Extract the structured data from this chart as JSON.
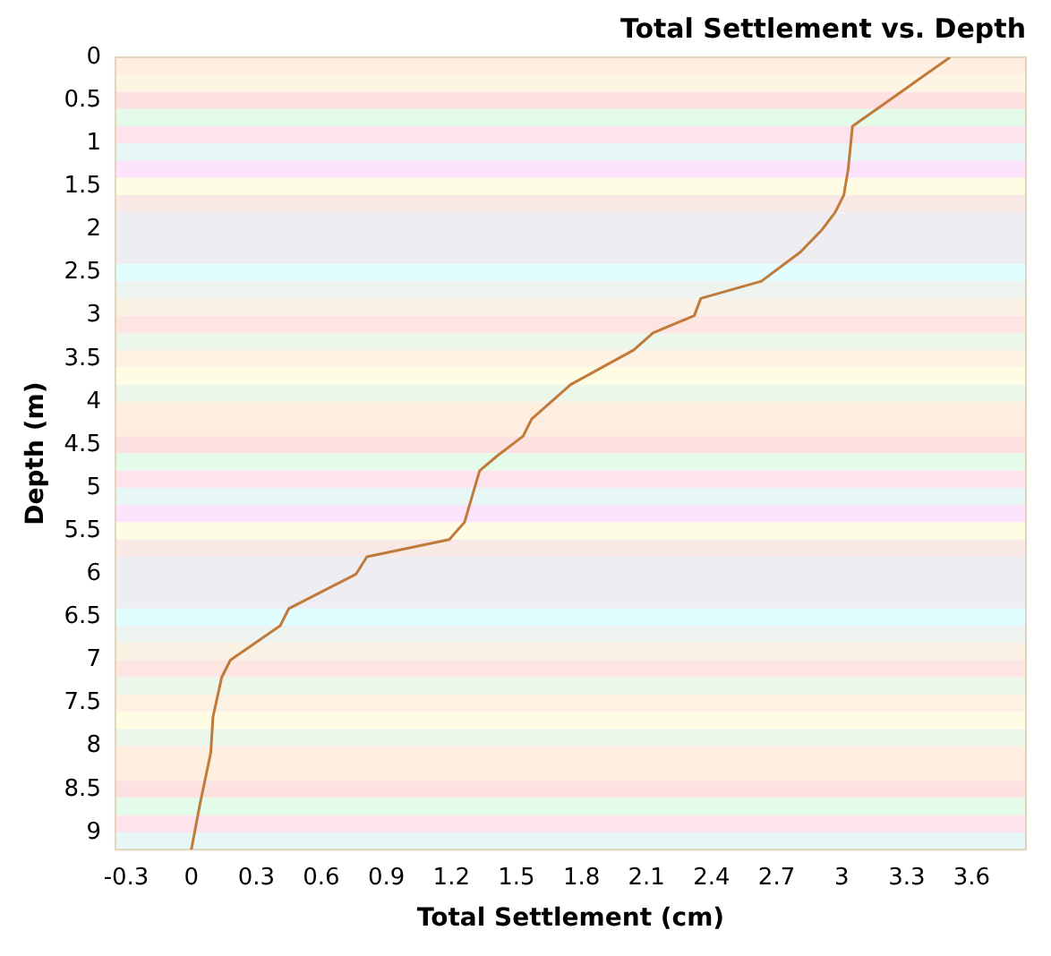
{
  "chart_data": {
    "type": "line",
    "title": "Total Settlement vs. Depth",
    "xlabel": "Total Settlement (cm)",
    "ylabel": "Depth (m)",
    "orientation": "horizontal",
    "series": [
      {
        "color": "#c07a3a",
        "values": [
          3.5,
          3.05,
          3.03,
          3.01,
          2.97,
          2.91,
          2.81,
          2.63,
          2.35,
          2.32,
          2.13,
          2.04,
          1.75,
          1.57,
          1.53,
          1.41,
          1.33,
          1.26,
          1.19,
          0.81,
          0.76,
          0.45,
          0.41,
          0.18,
          0.14,
          0.1,
          0.09,
          0.04,
          0
        ],
        "x": [
          0,
          0.8,
          1.3,
          1.6,
          1.8,
          2.0,
          2.26,
          2.6,
          2.8,
          3.0,
          3.2,
          3.4,
          3.8,
          4.2,
          4.4,
          4.63,
          4.8,
          5.4,
          5.6,
          5.8,
          6.0,
          6.4,
          6.6,
          7.0,
          7.2,
          7.66,
          8.07,
          8.67,
          9.2
        ]
      }
    ],
    "xlim": [
      -0.35,
      3.85
    ],
    "xticks": [
      -0.3,
      0,
      0.3,
      0.6,
      0.9,
      1.2,
      1.5,
      1.8,
      2.1,
      2.4,
      2.7,
      3,
      3.3,
      3.6
    ],
    "ylim": [
      9.2,
      0
    ],
    "yticks": [
      0,
      0.5,
      1,
      1.5,
      2,
      2.5,
      3,
      3.5,
      4,
      4.5,
      5,
      5.5,
      6,
      6.5,
      7,
      7.5,
      8,
      8.5,
      9
    ],
    "grid": false,
    "legend": false,
    "marker": "none",
    "line_style": "solid",
    "bands": [
      {
        "axis": "y",
        "from": 0,
        "to": 0.2,
        "color": "#fdeee0"
      },
      {
        "axis": "y",
        "from": 0.2,
        "to": 0.4,
        "color": "#fdf5e3"
      },
      {
        "axis": "y",
        "from": 0.4,
        "to": 0.6,
        "color": "#fde1e1"
      },
      {
        "axis": "y",
        "from": 0.6,
        "to": 0.8,
        "color": "#e4fbe9"
      },
      {
        "axis": "y",
        "from": 0.8,
        "to": 1.0,
        "color": "#fde3ec"
      },
      {
        "axis": "y",
        "from": 1.0,
        "to": 1.2,
        "color": "#e6f7f5"
      },
      {
        "axis": "y",
        "from": 1.2,
        "to": 1.4,
        "color": "#fde3fb"
      },
      {
        "axis": "y",
        "from": 1.4,
        "to": 1.6,
        "color": "#fefde3"
      },
      {
        "axis": "y",
        "from": 1.6,
        "to": 1.8,
        "color": "#f8e9e6"
      },
      {
        "axis": "y",
        "from": 1.8,
        "to": 2.4,
        "color": "#eeeef2"
      },
      {
        "axis": "y",
        "from": 2.4,
        "to": 2.6,
        "color": "#e2fdfd"
      },
      {
        "axis": "y",
        "from": 2.6,
        "to": 2.8,
        "color": "#edf4f0"
      },
      {
        "axis": "y",
        "from": 2.8,
        "to": 3.0,
        "color": "#f9f1e3"
      },
      {
        "axis": "y",
        "from": 3.0,
        "to": 3.2,
        "color": "#fde6e1"
      },
      {
        "axis": "y",
        "from": 3.2,
        "to": 3.4,
        "color": "#edf6eb"
      },
      {
        "axis": "y",
        "from": 3.4,
        "to": 3.6,
        "color": "#fdf1e3"
      },
      {
        "axis": "y",
        "from": 3.6,
        "to": 3.8,
        "color": "#fefde3"
      },
      {
        "axis": "y",
        "from": 3.8,
        "to": 4.0,
        "color": "#edf6eb"
      },
      {
        "axis": "y",
        "from": 4.0,
        "to": 4.4,
        "color": "#fdeee0"
      },
      {
        "axis": "y",
        "from": 4.4,
        "to": 4.6,
        "color": "#fde1e1"
      },
      {
        "axis": "y",
        "from": 4.6,
        "to": 4.8,
        "color": "#e4fbe9"
      },
      {
        "axis": "y",
        "from": 4.8,
        "to": 5.0,
        "color": "#fde3ec"
      },
      {
        "axis": "y",
        "from": 5.0,
        "to": 5.2,
        "color": "#e6f7f5"
      },
      {
        "axis": "y",
        "from": 5.2,
        "to": 5.4,
        "color": "#fde3fb"
      },
      {
        "axis": "y",
        "from": 5.4,
        "to": 5.6,
        "color": "#fefde3"
      },
      {
        "axis": "y",
        "from": 5.6,
        "to": 5.8,
        "color": "#f8e9e6"
      },
      {
        "axis": "y",
        "from": 5.8,
        "to": 6.4,
        "color": "#eeeef2"
      },
      {
        "axis": "y",
        "from": 6.4,
        "to": 6.6,
        "color": "#e2fdfd"
      },
      {
        "axis": "y",
        "from": 6.6,
        "to": 6.8,
        "color": "#edf4f0"
      },
      {
        "axis": "y",
        "from": 6.8,
        "to": 7.0,
        "color": "#f9f1e3"
      },
      {
        "axis": "y",
        "from": 7.0,
        "to": 7.2,
        "color": "#fde6e1"
      },
      {
        "axis": "y",
        "from": 7.2,
        "to": 7.4,
        "color": "#edf6eb"
      },
      {
        "axis": "y",
        "from": 7.4,
        "to": 7.6,
        "color": "#fdf1e3"
      },
      {
        "axis": "y",
        "from": 7.6,
        "to": 7.8,
        "color": "#fefde3"
      },
      {
        "axis": "y",
        "from": 7.8,
        "to": 8.0,
        "color": "#edf6eb"
      },
      {
        "axis": "y",
        "from": 8.0,
        "to": 8.4,
        "color": "#fdeee0"
      },
      {
        "axis": "y",
        "from": 8.4,
        "to": 8.6,
        "color": "#fde1e1"
      },
      {
        "axis": "y",
        "from": 8.6,
        "to": 8.8,
        "color": "#e4fbe9"
      },
      {
        "axis": "y",
        "from": 8.8,
        "to": 9.0,
        "color": "#fde3ec"
      },
      {
        "axis": "y",
        "from": 9.0,
        "to": 9.2,
        "color": "#e6f7f5"
      }
    ]
  }
}
